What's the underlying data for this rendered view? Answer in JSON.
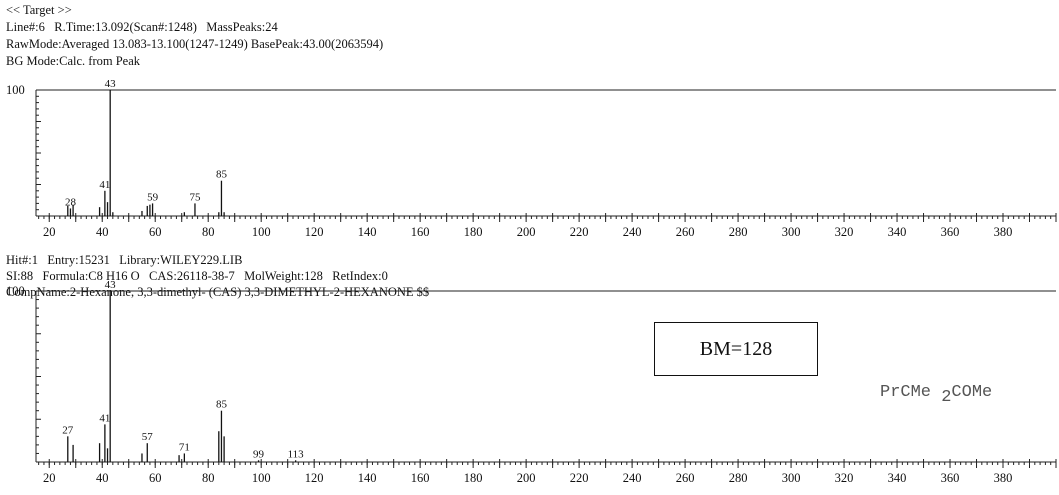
{
  "target_header": {
    "line1": "<< Target >>",
    "line2": "Line#:6   R.Time:13.092(Scan#:1248)   MassPeaks:24",
    "line3": "RawMode:Averaged 13.083-13.100(1247-1249) BasePeak:43.00(2063594)",
    "line4": "BG Mode:Calc. from Peak"
  },
  "hit_header": {
    "line1": "Hit#:1   Entry:15231   Library:WILEY229.LIB",
    "line2": "SI:88   Formula:C8 H16 O   CAS:26118-38-7   MolWeight:128   RetIndex:0",
    "line3": "CompName:2-Hexanone, 3,3-dimethyl- (CAS) 3,3-DIMETHYL-2-HEXANONE $$"
  },
  "annotation": {
    "bm_label": "BM=128",
    "formula_main": "PrCMe",
    "formula_sub": "2",
    "formula_tail": "COMe"
  },
  "chart_data": [
    {
      "type": "bar",
      "title": "",
      "xlabel": "",
      "ylabel": "",
      "xlim": [
        15,
        400
      ],
      "ylim": [
        0,
        100
      ],
      "x_ticks": [
        20,
        40,
        60,
        80,
        100,
        120,
        140,
        160,
        180,
        200,
        220,
        240,
        260,
        280,
        300,
        320,
        340,
        360,
        380
      ],
      "y_ticks": [
        100
      ],
      "peaks": [
        {
          "mz": 27,
          "intensity": 8,
          "label": ""
        },
        {
          "mz": 28,
          "intensity": 6,
          "label": "28"
        },
        {
          "mz": 29,
          "intensity": 9,
          "label": ""
        },
        {
          "mz": 39,
          "intensity": 7,
          "label": ""
        },
        {
          "mz": 41,
          "intensity": 20,
          "label": "41"
        },
        {
          "mz": 42,
          "intensity": 11,
          "label": ""
        },
        {
          "mz": 43,
          "intensity": 100,
          "label": "43"
        },
        {
          "mz": 44,
          "intensity": 3,
          "label": ""
        },
        {
          "mz": 55,
          "intensity": 4,
          "label": ""
        },
        {
          "mz": 57,
          "intensity": 8,
          "label": ""
        },
        {
          "mz": 58,
          "intensity": 9,
          "label": ""
        },
        {
          "mz": 59,
          "intensity": 10,
          "label": "59"
        },
        {
          "mz": 71,
          "intensity": 3,
          "label": ""
        },
        {
          "mz": 75,
          "intensity": 10,
          "label": "75"
        },
        {
          "mz": 84,
          "intensity": 3,
          "label": ""
        },
        {
          "mz": 85,
          "intensity": 28,
          "label": "85"
        },
        {
          "mz": 86,
          "intensity": 3,
          "label": ""
        }
      ]
    },
    {
      "type": "bar",
      "title": "",
      "xlabel": "",
      "ylabel": "",
      "xlim": [
        15,
        400
      ],
      "ylim": [
        0,
        100
      ],
      "x_ticks": [
        20,
        40,
        60,
        80,
        100,
        120,
        140,
        160,
        180,
        200,
        220,
        240,
        260,
        280,
        300,
        320,
        340,
        360,
        380
      ],
      "y_ticks": [
        100
      ],
      "peaks": [
        {
          "mz": 27,
          "intensity": 15,
          "label": "27"
        },
        {
          "mz": 29,
          "intensity": 10,
          "label": ""
        },
        {
          "mz": 39,
          "intensity": 11,
          "label": ""
        },
        {
          "mz": 41,
          "intensity": 22,
          "label": "41"
        },
        {
          "mz": 42,
          "intensity": 8,
          "label": ""
        },
        {
          "mz": 43,
          "intensity": 100,
          "label": "43"
        },
        {
          "mz": 55,
          "intensity": 5,
          "label": ""
        },
        {
          "mz": 57,
          "intensity": 11,
          "label": "57"
        },
        {
          "mz": 69,
          "intensity": 4,
          "label": ""
        },
        {
          "mz": 71,
          "intensity": 5,
          "label": "71"
        },
        {
          "mz": 84,
          "intensity": 18,
          "label": ""
        },
        {
          "mz": 85,
          "intensity": 30,
          "label": "85"
        },
        {
          "mz": 86,
          "intensity": 15,
          "label": ""
        },
        {
          "mz": 99,
          "intensity": 1,
          "label": "99"
        },
        {
          "mz": 113,
          "intensity": 1,
          "label": "113"
        }
      ]
    }
  ]
}
